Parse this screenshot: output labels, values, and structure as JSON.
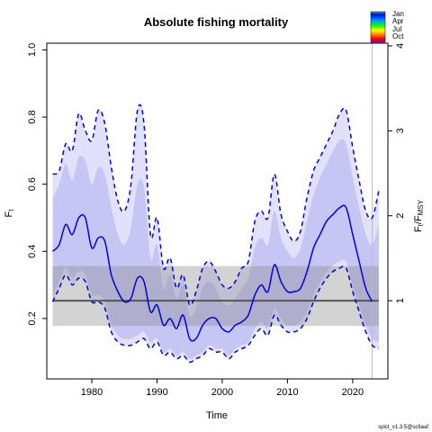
{
  "chart_data": {
    "type": "line",
    "title": "Absolute fishing mortality",
    "xlabel": "Time",
    "ylabel": "F_t",
    "ylabel2": "F_t/F_MSY",
    "xlim": [
      1973.1,
      2025.4
    ],
    "ylim": [
      0.02,
      1.02
    ],
    "xticks": [
      1980,
      1990,
      2000,
      2010,
      2020
    ],
    "yticks": [
      0.2,
      0.4,
      0.6,
      0.8,
      1.0
    ],
    "y2ticks": [
      1,
      2,
      3,
      4
    ],
    "fmsy": 0.253,
    "fmsy_ci": [
      0.178,
      0.356
    ],
    "vline_x": 2023,
    "legend_months": [
      "Jan",
      "Apr",
      "Jul",
      "Oct"
    ],
    "credit": "spict_v1.3.5@sc6aaf",
    "series": [
      {
        "role": "estimate",
        "x": [
          1974,
          1975,
          1976,
          1977,
          1978,
          1979,
          1980,
          1981,
          1982,
          1983,
          1984,
          1985,
          1986,
          1987,
          1988,
          1989,
          1990,
          1991,
          1992,
          1993,
          1994,
          1995,
          1996,
          1997,
          1998,
          1999,
          2000,
          2001,
          2002,
          2003,
          2004,
          2005,
          2006,
          2007,
          2008,
          2009,
          2010,
          2011,
          2012,
          2013,
          2014,
          2015,
          2016,
          2017,
          2018,
          2019,
          2020,
          2021,
          2022,
          2023
        ],
        "y": [
          0.4,
          0.42,
          0.48,
          0.45,
          0.5,
          0.5,
          0.41,
          0.44,
          0.43,
          0.33,
          0.28,
          0.25,
          0.26,
          0.32,
          0.31,
          0.22,
          0.24,
          0.18,
          0.2,
          0.17,
          0.21,
          0.14,
          0.14,
          0.18,
          0.2,
          0.2,
          0.17,
          0.16,
          0.18,
          0.19,
          0.21,
          0.27,
          0.3,
          0.28,
          0.36,
          0.31,
          0.28,
          0.28,
          0.29,
          0.34,
          0.41,
          0.45,
          0.49,
          0.51,
          0.53,
          0.53,
          0.45,
          0.37,
          0.29,
          0.25
        ]
      },
      {
        "role": "ci-upper",
        "x": [
          1974,
          1975,
          1976,
          1977,
          1978,
          1979,
          1980,
          1981,
          1982,
          1983,
          1984,
          1985,
          1986,
          1987,
          1988,
          1989,
          1990,
          1991,
          1992,
          1993,
          1994,
          1995,
          1996,
          1997,
          1998,
          1999,
          2000,
          2001,
          2002,
          2003,
          2004,
          2005,
          2006,
          2007,
          2008,
          2009,
          2010,
          2011,
          2012,
          2013,
          2014,
          2015,
          2016,
          2017,
          2018,
          2019,
          2020,
          2021,
          2022,
          2023,
          2024
        ],
        "y": [
          0.63,
          0.64,
          0.72,
          0.7,
          0.81,
          0.76,
          0.73,
          0.82,
          0.78,
          0.65,
          0.55,
          0.52,
          0.6,
          0.82,
          0.78,
          0.45,
          0.5,
          0.35,
          0.38,
          0.29,
          0.33,
          0.24,
          0.28,
          0.35,
          0.37,
          0.34,
          0.3,
          0.29,
          0.31,
          0.35,
          0.37,
          0.49,
          0.52,
          0.5,
          0.63,
          0.51,
          0.46,
          0.43,
          0.46,
          0.56,
          0.64,
          0.68,
          0.72,
          0.76,
          0.81,
          0.82,
          0.71,
          0.61,
          0.52,
          0.5,
          0.58
        ]
      },
      {
        "role": "ci-lower",
        "x": [
          1974,
          1975,
          1976,
          1977,
          1978,
          1979,
          1980,
          1981,
          1982,
          1983,
          1984,
          1985,
          1986,
          1987,
          1988,
          1989,
          1990,
          1991,
          1992,
          1993,
          1994,
          1995,
          1996,
          1997,
          1998,
          1999,
          2000,
          2001,
          2002,
          2003,
          2004,
          2005,
          2006,
          2007,
          2008,
          2009,
          2010,
          2011,
          2012,
          2013,
          2014,
          2015,
          2016,
          2017,
          2018,
          2019,
          2020,
          2021,
          2022,
          2023,
          2024
        ],
        "y": [
          0.25,
          0.29,
          0.33,
          0.3,
          0.32,
          0.31,
          0.25,
          0.25,
          0.23,
          0.16,
          0.13,
          0.12,
          0.12,
          0.13,
          0.14,
          0.11,
          0.13,
          0.09,
          0.1,
          0.08,
          0.09,
          0.07,
          0.08,
          0.09,
          0.11,
          0.1,
          0.1,
          0.08,
          0.1,
          0.11,
          0.12,
          0.15,
          0.17,
          0.15,
          0.21,
          0.18,
          0.16,
          0.16,
          0.17,
          0.2,
          0.25,
          0.29,
          0.32,
          0.34,
          0.35,
          0.35,
          0.28,
          0.22,
          0.16,
          0.12,
          0.11
        ]
      },
      {
        "role": "band-upper",
        "x": [
          1974,
          1975,
          1976,
          1977,
          1978,
          1979,
          1980,
          1981,
          1982,
          1983,
          1984,
          1985,
          1986,
          1987,
          1988,
          1989,
          1990,
          1991,
          1992,
          1993,
          1994,
          1995,
          1996,
          1997,
          1998,
          1999,
          2000,
          2001,
          2002,
          2003,
          2004,
          2005,
          2006,
          2007,
          2008,
          2009,
          2010,
          2011,
          2012,
          2013,
          2014,
          2015,
          2016,
          2017,
          2018,
          2019,
          2020,
          2021,
          2022,
          2023,
          2024
        ],
        "y": [
          0.56,
          0.6,
          0.66,
          0.61,
          0.68,
          0.67,
          0.6,
          0.65,
          0.63,
          0.53,
          0.45,
          0.42,
          0.47,
          0.6,
          0.59,
          0.38,
          0.42,
          0.29,
          0.33,
          0.26,
          0.3,
          0.21,
          0.23,
          0.29,
          0.31,
          0.29,
          0.25,
          0.24,
          0.26,
          0.29,
          0.32,
          0.41,
          0.44,
          0.42,
          0.52,
          0.44,
          0.4,
          0.38,
          0.41,
          0.49,
          0.57,
          0.62,
          0.66,
          0.7,
          0.73,
          0.72,
          0.62,
          0.53,
          0.45,
          0.42,
          0.48
        ]
      },
      {
        "role": "band-lower",
        "x": [
          1974,
          1975,
          1976,
          1977,
          1978,
          1979,
          1980,
          1981,
          1982,
          1983,
          1984,
          1985,
          1986,
          1987,
          1988,
          1989,
          1990,
          1991,
          1992,
          1993,
          1994,
          1995,
          1996,
          1997,
          1998,
          1999,
          2000,
          2001,
          2002,
          2003,
          2004,
          2005,
          2006,
          2007,
          2008,
          2009,
          2010,
          2011,
          2012,
          2013,
          2014,
          2015,
          2016,
          2017,
          2018,
          2019,
          2020,
          2021,
          2022,
          2023,
          2024
        ],
        "y": [
          0.27,
          0.31,
          0.35,
          0.32,
          0.34,
          0.33,
          0.27,
          0.27,
          0.25,
          0.18,
          0.15,
          0.14,
          0.14,
          0.15,
          0.16,
          0.13,
          0.14,
          0.1,
          0.11,
          0.09,
          0.1,
          0.08,
          0.09,
          0.1,
          0.12,
          0.11,
          0.11,
          0.09,
          0.11,
          0.12,
          0.13,
          0.17,
          0.19,
          0.17,
          0.23,
          0.2,
          0.18,
          0.18,
          0.19,
          0.22,
          0.27,
          0.31,
          0.34,
          0.36,
          0.37,
          0.37,
          0.3,
          0.24,
          0.18,
          0.14,
          0.13
        ]
      }
    ]
  }
}
